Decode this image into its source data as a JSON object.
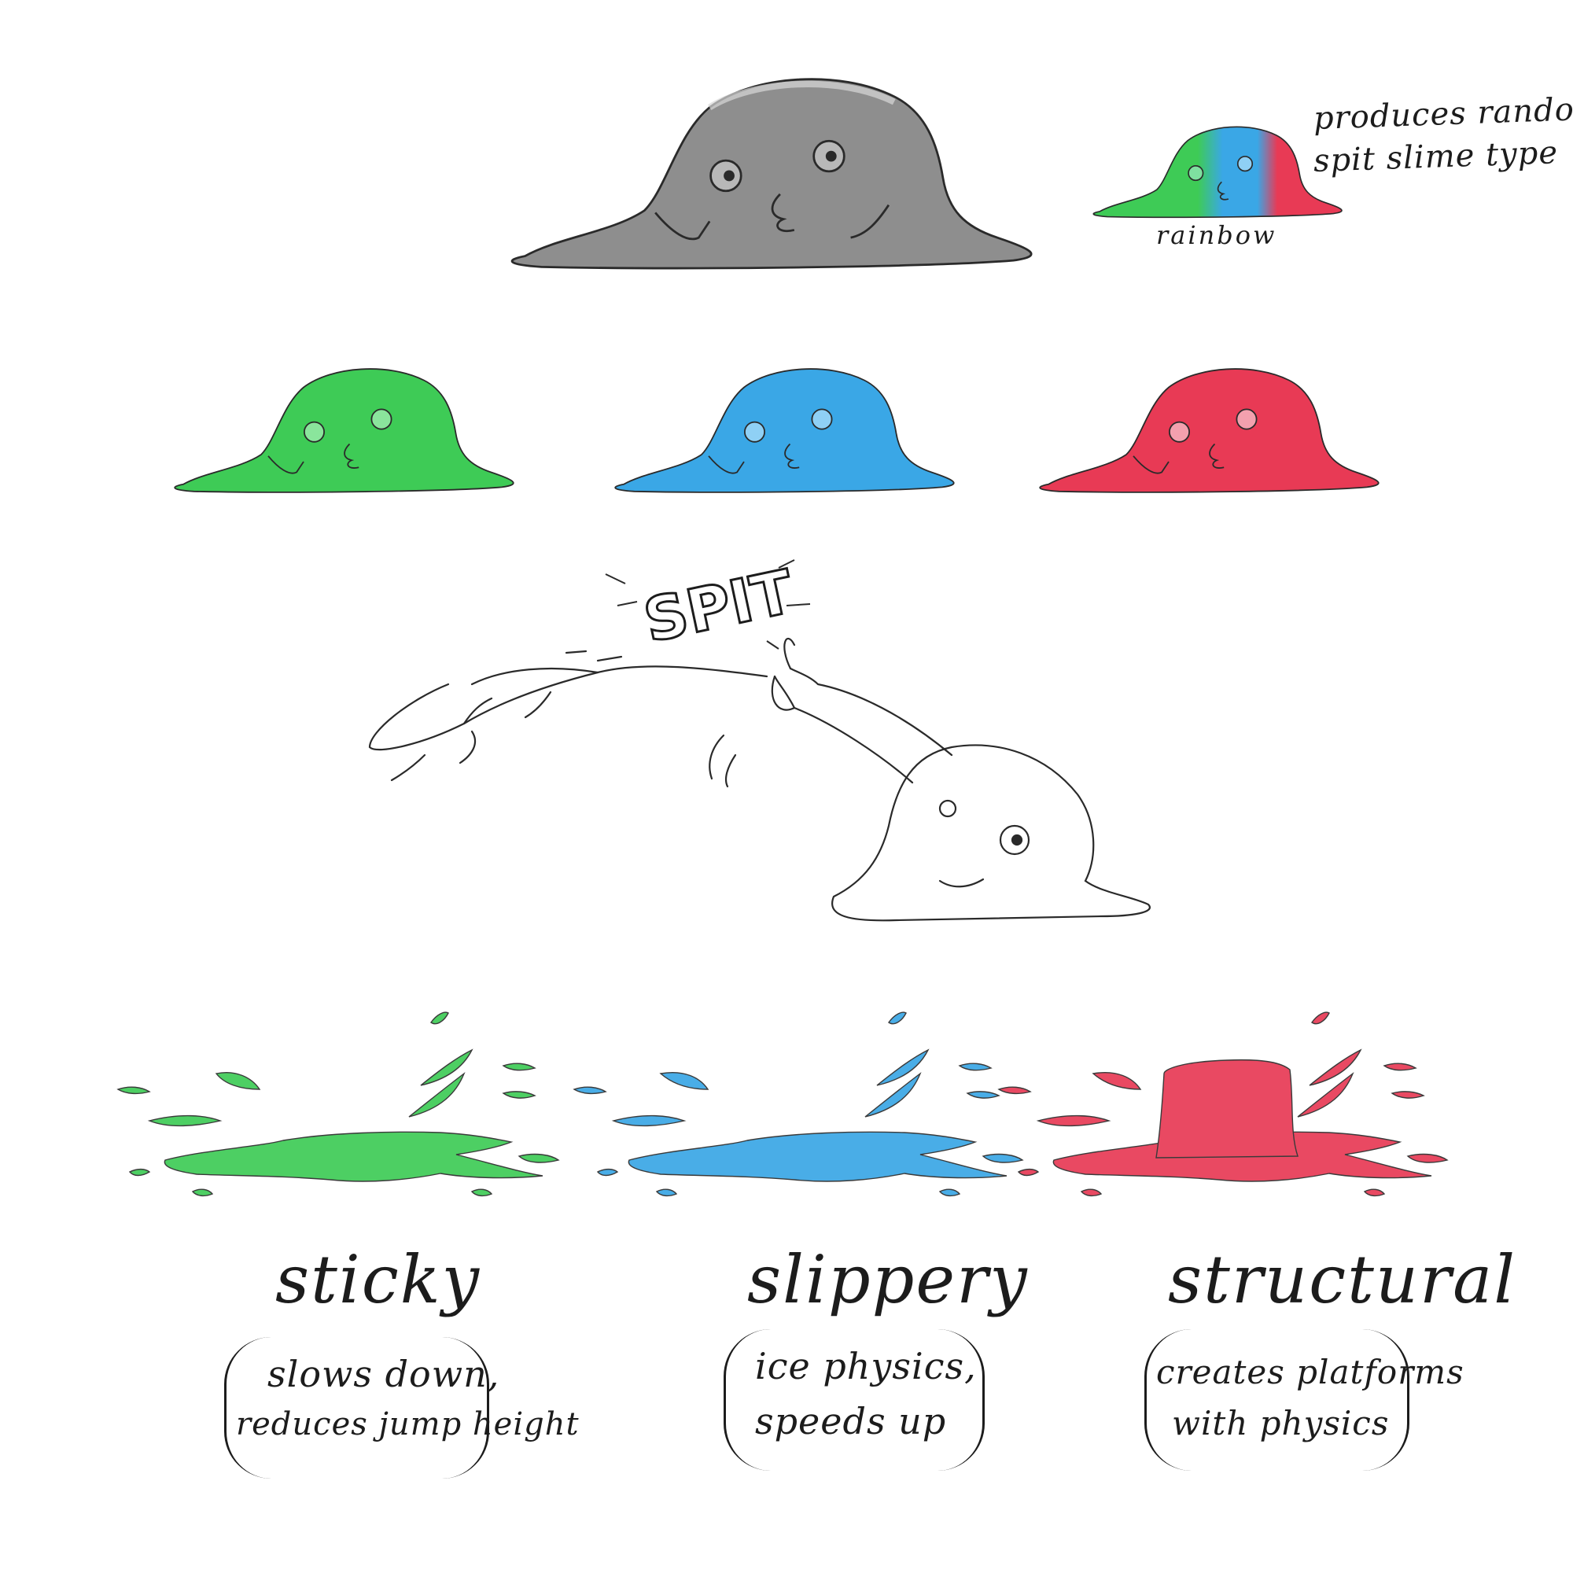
{
  "colors": {
    "ink": "#1c1c1c",
    "gray_slime": "#8e8e8e",
    "green_slime": "#3ecb56",
    "blue_slime": "#3aa7e6",
    "red_slime": "#e83a55"
  },
  "rainbow": {
    "label": "rainbow",
    "note_line1": "produces random",
    "note_line2": "spit slime type"
  },
  "sound_effect": "SPIT",
  "types": [
    {
      "name": "sticky",
      "desc_line1": "slows down,",
      "desc_line2": "reduces jump height"
    },
    {
      "name": "slippery",
      "desc_line1": "ice physics,",
      "desc_line2": "speeds up"
    },
    {
      "name": "structural",
      "desc_line1": "creates platforms",
      "desc_line2": "with physics"
    }
  ]
}
